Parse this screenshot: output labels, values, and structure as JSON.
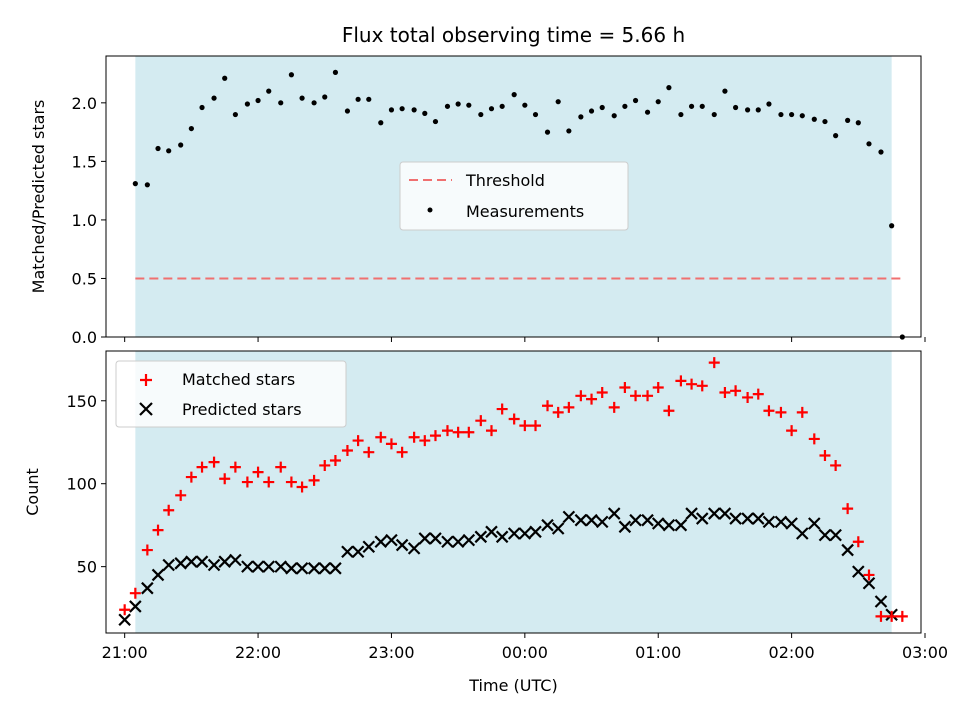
{
  "chart_data": [
    {
      "type": "scatter",
      "title": "Flux total observing time = 5.66 h",
      "ylabel": "Matched/Predicted stars",
      "xlabel": "",
      "x_unit": "hours since 21:00 UTC (axis prints clock time)",
      "xlim": [
        -0.14,
        5.97
      ],
      "ylim": [
        0.0,
        2.4
      ],
      "yticks": [
        0.0,
        0.5,
        1.0,
        1.5,
        2.0
      ],
      "ytick_labels": [
        "0.0",
        "0.5",
        "1.0",
        "1.5",
        "2.0"
      ],
      "observing_window": [
        0.08,
        5.75
      ],
      "shade_color": "#d4ebf1",
      "legend": {
        "placement": "center",
        "entries": [
          {
            "label": "Threshold",
            "kind": "dashed-line",
            "color": "#f07070"
          },
          {
            "label": "Measurements",
            "kind": "dot",
            "color": "#000000"
          }
        ]
      },
      "series": [
        {
          "name": "Threshold",
          "kind": "line",
          "color": "#f07070",
          "x": [
            0.08,
            5.83
          ],
          "y": [
            0.5,
            0.5
          ]
        },
        {
          "name": "Measurements",
          "kind": "dot",
          "color": "#000000",
          "x": [
            0.08,
            0.17,
            0.25,
            0.33,
            0.42,
            0.5,
            0.58,
            0.67,
            0.75,
            0.83,
            0.92,
            1.0,
            1.08,
            1.17,
            1.25,
            1.33,
            1.42,
            1.5,
            1.58,
            1.67,
            1.75,
            1.83,
            1.92,
            2.0,
            2.08,
            2.17,
            2.25,
            2.33,
            2.42,
            2.5,
            2.58,
            2.67,
            2.75,
            2.83,
            2.92,
            3.0,
            3.08,
            3.17,
            3.25,
            3.33,
            3.42,
            3.5,
            3.58,
            3.67,
            3.75,
            3.83,
            3.92,
            4.0,
            4.08,
            4.17,
            4.25,
            4.33,
            4.42,
            4.5,
            4.58,
            4.67,
            4.75,
            4.83,
            4.92,
            5.0,
            5.08,
            5.17,
            5.25,
            5.33,
            5.42,
            5.5,
            5.58,
            5.67,
            5.75,
            5.83
          ],
          "y": [
            1.31,
            1.3,
            1.61,
            1.59,
            1.64,
            1.78,
            1.96,
            2.04,
            2.21,
            1.9,
            1.99,
            2.02,
            2.1,
            2.0,
            2.24,
            2.04,
            2.0,
            2.05,
            2.26,
            1.93,
            2.03,
            2.03,
            1.83,
            1.94,
            1.95,
            1.94,
            1.91,
            1.84,
            1.97,
            1.99,
            1.98,
            1.9,
            1.95,
            1.97,
            2.07,
            1.98,
            1.9,
            1.75,
            2.01,
            1.76,
            1.88,
            1.93,
            1.96,
            1.89,
            1.97,
            2.02,
            1.92,
            2.01,
            2.13,
            1.9,
            1.97,
            1.97,
            1.9,
            2.1,
            1.96,
            1.94,
            1.94,
            1.99,
            1.9,
            1.9,
            1.89,
            1.86,
            1.84,
            1.72,
            1.85,
            1.83,
            1.65,
            1.58,
            0.95,
            0.0
          ]
        }
      ]
    },
    {
      "type": "scatter",
      "title": "",
      "xlabel": "Time (UTC)",
      "ylabel": "Count",
      "x_unit": "hours since 21:00 UTC (axis prints clock time)",
      "xlim": [
        -0.14,
        5.97
      ],
      "ylim": [
        10,
        180
      ],
      "xticks": [
        0,
        1,
        2,
        3,
        4,
        5,
        6
      ],
      "xtick_labels": [
        "21:00",
        "22:00",
        "23:00",
        "00:00",
        "01:00",
        "02:00",
        "03:00"
      ],
      "yticks": [
        50,
        100,
        150
      ],
      "ytick_labels": [
        "50",
        "100",
        "150"
      ],
      "observing_window": [
        0.08,
        5.75
      ],
      "shade_color": "#d4ebf1",
      "legend": {
        "placement": "upper-left",
        "entries": [
          {
            "label": "Matched stars",
            "kind": "plus",
            "color": "#ff0000"
          },
          {
            "label": "Predicted stars",
            "kind": "cross",
            "color": "#000000"
          }
        ]
      },
      "series": [
        {
          "name": "Matched stars",
          "kind": "plus",
          "color": "#ff0000",
          "x": [
            0.0,
            0.08,
            0.17,
            0.25,
            0.33,
            0.42,
            0.5,
            0.58,
            0.67,
            0.75,
            0.83,
            0.92,
            1.0,
            1.08,
            1.17,
            1.25,
            1.33,
            1.42,
            1.5,
            1.58,
            1.67,
            1.75,
            1.83,
            1.92,
            2.0,
            2.08,
            2.17,
            2.25,
            2.33,
            2.42,
            2.5,
            2.58,
            2.67,
            2.75,
            2.83,
            2.92,
            3.0,
            3.08,
            3.17,
            3.25,
            3.33,
            3.42,
            3.5,
            3.58,
            3.67,
            3.75,
            3.83,
            3.92,
            4.0,
            4.08,
            4.17,
            4.25,
            4.33,
            4.42,
            4.5,
            4.58,
            4.67,
            4.75,
            4.83,
            4.92,
            5.0,
            5.08,
            5.17,
            5.25,
            5.33,
            5.42,
            5.5,
            5.58,
            5.67,
            5.75,
            5.83
          ],
          "y": [
            24,
            34,
            60,
            72,
            84,
            93,
            104,
            110,
            113,
            103,
            110,
            101,
            107,
            101,
            110,
            101,
            98,
            102,
            111,
            114,
            120,
            126,
            119,
            128,
            124,
            119,
            128,
            126,
            129,
            132,
            131,
            131,
            138,
            132,
            145,
            139,
            135,
            135,
            147,
            143,
            146,
            153,
            151,
            155,
            146,
            158,
            153,
            153,
            158,
            144,
            162,
            160,
            159,
            173,
            155,
            156,
            152,
            154,
            144,
            143,
            132,
            143,
            127,
            117,
            111,
            85,
            65,
            45,
            20,
            20,
            20
          ]
        },
        {
          "name": "Predicted stars",
          "kind": "cross",
          "color": "#000000",
          "x": [
            0.0,
            0.08,
            0.17,
            0.25,
            0.33,
            0.42,
            0.5,
            0.58,
            0.67,
            0.75,
            0.83,
            0.92,
            1.0,
            1.08,
            1.17,
            1.25,
            1.33,
            1.42,
            1.5,
            1.58,
            1.67,
            1.75,
            1.83,
            1.92,
            2.0,
            2.08,
            2.17,
            2.25,
            2.33,
            2.42,
            2.5,
            2.58,
            2.67,
            2.75,
            2.83,
            2.92,
            3.0,
            3.08,
            3.17,
            3.25,
            3.33,
            3.42,
            3.5,
            3.58,
            3.67,
            3.75,
            3.83,
            3.92,
            4.0,
            4.08,
            4.17,
            4.25,
            4.33,
            4.42,
            4.5,
            4.58,
            4.67,
            4.75,
            4.83,
            4.92,
            5.0,
            5.08,
            5.17,
            5.25,
            5.33,
            5.42,
            5.5,
            5.58,
            5.67,
            5.75
          ],
          "y": [
            18,
            26,
            37,
            45,
            51,
            52,
            53,
            53,
            51,
            53,
            54,
            50,
            50,
            50,
            50,
            49,
            49,
            49,
            49,
            49,
            59,
            59,
            62,
            65,
            66,
            63,
            61,
            67,
            67,
            65,
            65,
            66,
            68,
            71,
            68,
            70,
            70,
            71,
            75,
            73,
            80,
            78,
            78,
            77,
            82,
            74,
            78,
            78,
            76,
            75,
            75,
            82,
            79,
            82,
            82,
            79,
            79,
            79,
            77,
            77,
            76,
            70,
            76,
            69,
            69,
            60,
            47,
            40,
            29,
            21
          ]
        }
      ]
    }
  ]
}
